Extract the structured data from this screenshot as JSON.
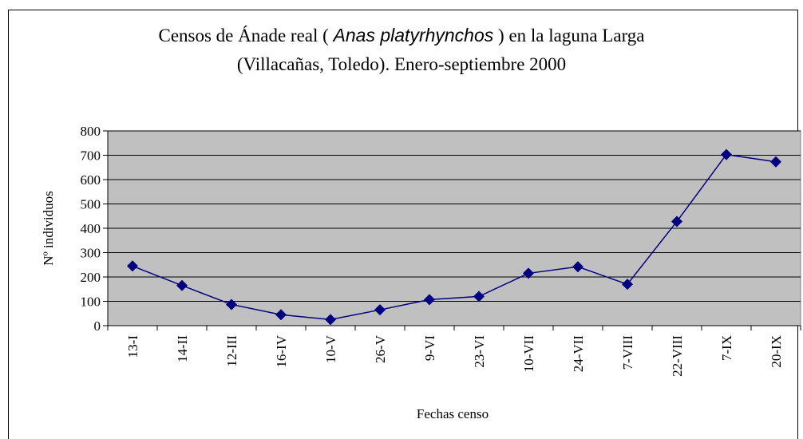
{
  "chart_data": {
    "type": "line",
    "title": {
      "before": "Censos de Ánade real ( ",
      "species": "Anas platyrhynchos",
      "after": " ) en la laguna Larga",
      "line2": "(Villacañas, Toledo). Enero-septiembre 2000"
    },
    "x_label": "Fechas censo",
    "y_label": "Nº individuos",
    "categories": [
      "13-I",
      "14-II",
      "12-III",
      "16-IV",
      "10-V",
      "26-V",
      "9-VI",
      "23-VI",
      "10-VII",
      "24-VII",
      "7-VIII",
      "22-VIII",
      "7-IX",
      "20-IX"
    ],
    "series": [
      {
        "name": "Ánade real",
        "color": "#000080",
        "values": [
          245,
          165,
          87,
          45,
          25,
          65,
          107,
          120,
          215,
          242,
          170,
          428,
          703,
          673
        ]
      }
    ],
    "ylim": [
      0,
      800
    ],
    "yticks": [
      0,
      100,
      200,
      300,
      400,
      500,
      600,
      700,
      800
    ],
    "grid": true,
    "plot_background": "#c0c0c0"
  }
}
